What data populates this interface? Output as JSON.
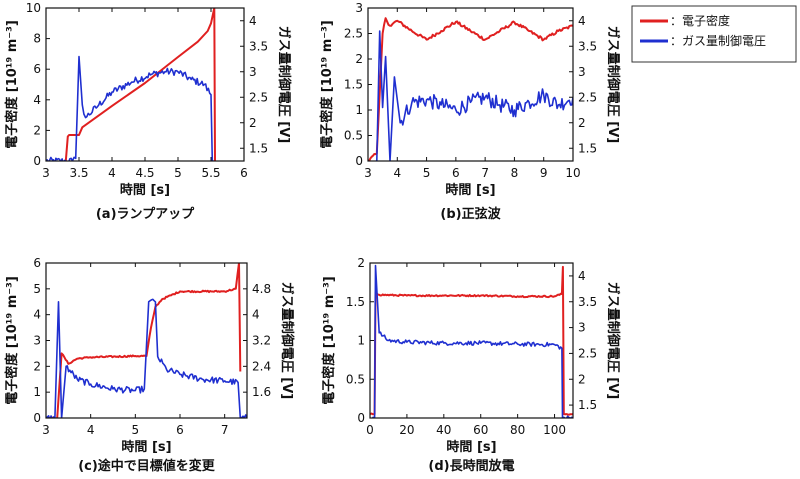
{
  "legend": {
    "entries": [
      {
        "name": "：電子密度",
        "color": "#e02020"
      },
      {
        "name": "：ガス量制御電圧",
        "color": "#1f2fd0"
      }
    ]
  },
  "chart_data": [
    {
      "type": "line",
      "caption": "(a)ランプアップ",
      "xlabel": "時間 [s]",
      "ylabel": "電子密度 [10¹⁹ m⁻³]",
      "y2label": "ガス量制御電圧 [V]",
      "xlim": [
        3,
        6
      ],
      "ylim": [
        0,
        10
      ],
      "y2lim": [
        1.25,
        4.25
      ],
      "xticks": [
        3,
        3.5,
        4,
        4.5,
        5,
        5.5,
        6
      ],
      "yticks": [
        0,
        2,
        4,
        6,
        8,
        10
      ],
      "y2ticks": [
        1.5,
        2,
        2.5,
        3,
        3.5,
        4
      ],
      "series": [
        {
          "name": "電子密度",
          "color": "#e02020",
          "axis": "left",
          "x": [
            3.3,
            3.33,
            3.35,
            3.4,
            3.5,
            3.55,
            4.0,
            4.5,
            5.0,
            5.3,
            5.45,
            5.5,
            5.53,
            5.55,
            5.56
          ],
          "y": [
            0,
            1.6,
            1.7,
            1.7,
            1.7,
            2.2,
            3.6,
            5.1,
            6.8,
            7.8,
            8.5,
            9.0,
            9.6,
            10.0,
            0
          ]
        },
        {
          "name": "ガス量制御電圧",
          "color": "#1f2fd0",
          "axis": "right",
          "x": [
            3.0,
            3.3,
            3.4,
            3.45,
            3.48,
            3.5,
            3.55,
            3.6,
            3.8,
            4.0,
            4.3,
            4.6,
            4.8,
            5.0,
            5.2,
            5.4,
            5.5,
            5.52,
            5.53,
            5.6
          ],
          "y": [
            1.25,
            1.25,
            1.25,
            1.3,
            2.5,
            3.3,
            2.35,
            2.1,
            2.35,
            2.6,
            2.8,
            2.95,
            3.0,
            3.0,
            2.85,
            2.75,
            2.55,
            1.25,
            1.25,
            1.25
          ],
          "noise": 0.07
        }
      ]
    },
    {
      "type": "line",
      "caption": "(b)正弦波",
      "xlabel": "時間 [s]",
      "ylabel": "電子密度 [10¹⁹ m⁻³]",
      "y2label": "ガス量制御電圧 [V]",
      "xlim": [
        3,
        10
      ],
      "ylim": [
        0,
        3
      ],
      "y2lim": [
        1.25,
        4.25
      ],
      "xticks": [
        3,
        4,
        5,
        6,
        7,
        8,
        9,
        10
      ],
      "yticks": [
        0,
        0.5,
        1,
        1.5,
        2,
        2.5,
        3
      ],
      "y2ticks": [
        1.5,
        2,
        2.5,
        3,
        3.5,
        4
      ],
      "series": [
        {
          "name": "電子密度",
          "color": "#e02020",
          "axis": "left",
          "x": [
            3.0,
            3.3,
            3.5,
            3.6,
            3.75,
            4.0,
            4.5,
            5.0,
            5.5,
            6.0,
            6.5,
            7.0,
            7.5,
            8.0,
            8.5,
            9.0,
            9.5,
            10.0
          ],
          "y": [
            0,
            0.15,
            2.5,
            2.8,
            2.65,
            2.75,
            2.55,
            2.38,
            2.55,
            2.73,
            2.55,
            2.38,
            2.55,
            2.72,
            2.55,
            2.38,
            2.55,
            2.65
          ],
          "noise": 0.03
        },
        {
          "name": "ガス量制御電圧",
          "color": "#1f2fd0",
          "axis": "right",
          "x": [
            3.0,
            3.3,
            3.4,
            3.5,
            3.6,
            3.75,
            3.9,
            4.1,
            4.5,
            5.0,
            5.5,
            6.0,
            6.5,
            7.0,
            7.5,
            8.0,
            8.5,
            9.0,
            9.5,
            10.0
          ],
          "y": [
            1.25,
            1.25,
            3.8,
            2.3,
            3.3,
            1.25,
            2.9,
            2.0,
            2.4,
            2.45,
            2.35,
            2.25,
            2.4,
            2.5,
            2.35,
            2.25,
            2.4,
            2.55,
            2.35,
            2.5
          ],
          "noise": 0.15
        }
      ]
    },
    {
      "type": "line",
      "caption": "(c)途中で目標値を変更",
      "xlabel": "時間 [s]",
      "ylabel": "電子密度 [10¹⁹ m⁻³]",
      "y2label": "ガス量制御電圧 [V]",
      "xlim": [
        3,
        7.5
      ],
      "ylim": [
        0,
        6
      ],
      "y2lim": [
        0.8,
        5.6
      ],
      "xticks": [
        3,
        4,
        5,
        6,
        7
      ],
      "yticks": [
        0,
        1,
        2,
        3,
        4,
        5,
        6
      ],
      "y2ticks": [
        1.6,
        2.4,
        3.2,
        4,
        4.8
      ],
      "series": [
        {
          "name": "電子密度",
          "color": "#e02020",
          "axis": "left",
          "x": [
            3.0,
            3.25,
            3.35,
            3.5,
            3.7,
            4.0,
            5.0,
            5.25,
            5.35,
            5.45,
            5.6,
            6.0,
            7.0,
            7.25,
            7.32,
            7.35
          ],
          "y": [
            0,
            0,
            2.5,
            2.1,
            2.3,
            2.35,
            2.4,
            2.4,
            3.5,
            4.3,
            4.6,
            4.9,
            4.9,
            5.0,
            6.0,
            1.8
          ],
          "noise": 0.03
        },
        {
          "name": "ガス量制御電圧",
          "color": "#1f2fd0",
          "axis": "right",
          "x": [
            3.0,
            3.2,
            3.28,
            3.35,
            3.45,
            3.7,
            4.0,
            4.5,
            5.0,
            5.2,
            5.3,
            5.45,
            5.5,
            5.7,
            6.0,
            6.5,
            7.0,
            7.3,
            7.35,
            7.5
          ],
          "y": [
            0.8,
            0.8,
            4.4,
            0.8,
            2.4,
            2.0,
            1.85,
            1.7,
            1.65,
            1.7,
            4.4,
            4.4,
            2.7,
            2.3,
            2.15,
            2.0,
            1.95,
            1.9,
            0.8,
            0.8
          ],
          "noise": 0.1
        }
      ]
    },
    {
      "type": "line",
      "caption": "(d)長時間放電",
      "xlabel": "時間 [s]",
      "ylabel": "電子密度 [10¹⁹ m⁻³]",
      "y2label": "ガス量制御電圧 [V]",
      "xlim": [
        0,
        110
      ],
      "ylim": [
        0,
        2
      ],
      "y2lim": [
        1.25,
        4.25
      ],
      "xticks": [
        0,
        20,
        40,
        60,
        80,
        100
      ],
      "yticks": [
        0,
        0.5,
        1,
        1.5,
        2
      ],
      "y2ticks": [
        1.5,
        2,
        2.5,
        3,
        3.5,
        4
      ],
      "series": [
        {
          "name": "電子密度",
          "color": "#e02020",
          "axis": "left",
          "x": [
            0,
            2.5,
            3,
            5,
            20,
            40,
            60,
            80,
            100,
            104,
            104.5,
            105,
            110
          ],
          "y": [
            0.05,
            0.05,
            1.62,
            1.59,
            1.58,
            1.58,
            1.58,
            1.57,
            1.57,
            1.6,
            1.95,
            0.05,
            0.05
          ],
          "noise": 0.01
        },
        {
          "name": "ガス量制御電圧",
          "color": "#1f2fd0",
          "axis": "right",
          "x": [
            0,
            2.5,
            3,
            5,
            10,
            20,
            40,
            60,
            80,
            100,
            104,
            104.3,
            110
          ],
          "y": [
            1.25,
            1.25,
            4.2,
            2.9,
            2.75,
            2.72,
            2.7,
            2.7,
            2.68,
            2.67,
            2.6,
            1.25,
            1.25
          ],
          "noise": 0.04
        }
      ]
    }
  ]
}
